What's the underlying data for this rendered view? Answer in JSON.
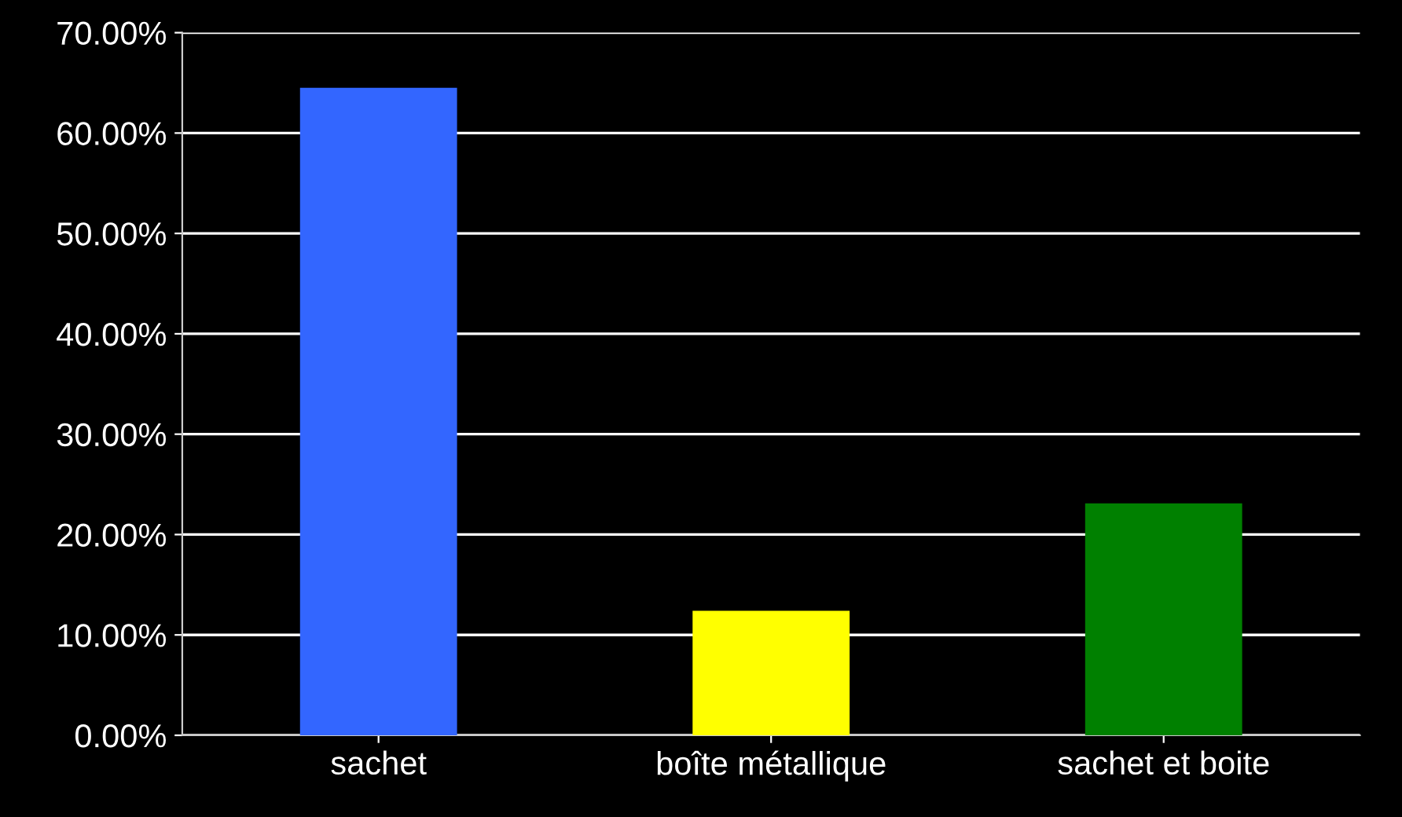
{
  "chart_data": {
    "type": "bar",
    "categories": [
      "sachet",
      "boîte métallique",
      "sachet et boite"
    ],
    "values": [
      64.5,
      12.4,
      23.1
    ],
    "colors": [
      "#3366ff",
      "#ffff00",
      "#008000"
    ],
    "ylim": [
      0,
      70
    ],
    "yticks": [
      {
        "value": 0,
        "label": "0.00%"
      },
      {
        "value": 10,
        "label": "10.00%"
      },
      {
        "value": 20,
        "label": "20.00%"
      },
      {
        "value": 30,
        "label": "30.00%"
      },
      {
        "value": 40,
        "label": "40.00%"
      },
      {
        "value": 50,
        "label": "50.00%"
      },
      {
        "value": 60,
        "label": "60.00%"
      },
      {
        "value": 70,
        "label": "70.00%"
      }
    ],
    "grid": "y",
    "legend": false
  }
}
